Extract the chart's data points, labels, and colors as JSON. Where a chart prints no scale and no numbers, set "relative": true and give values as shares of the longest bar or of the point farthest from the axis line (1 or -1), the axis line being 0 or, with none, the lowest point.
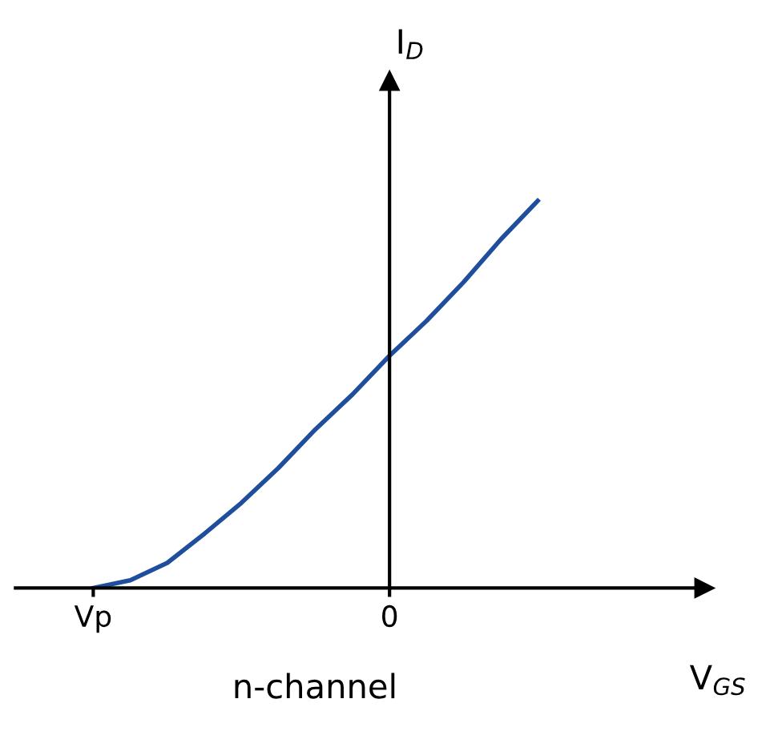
{
  "chart_data": {
    "type": "line",
    "xlabel": "V$_{GS}$",
    "ylabel": "I$_{D}$",
    "relative": true,
    "annotations": [
      "n-channel"
    ],
    "categories": [
      "Vp",
      null,
      null,
      null,
      null,
      null,
      null,
      null,
      "0",
      null,
      null,
      null,
      null
    ],
    "legend": false,
    "marker": "none",
    "line_style": "solid",
    "series": [
      {
        "color": "#1f4e9c",
        "values": [
          0,
          0.02,
          0.065,
          0.14,
          0.22,
          0.31,
          0.41,
          0.5,
          0.6,
          0.69,
          0.79,
          0.9,
          1.0
        ]
      }
    ]
  }
}
